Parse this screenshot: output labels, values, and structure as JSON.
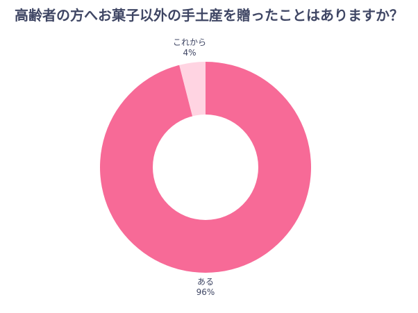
{
  "title": "高齢者の方へお菓子以外の手土産を贈ったことはありますか？",
  "colors": {
    "primary": "#f76a97",
    "secondary": "#ffd4e2",
    "text": "#3f4664"
  },
  "labels": [
    {
      "name": "ある",
      "pct": "96%"
    },
    {
      "name": "これから",
      "pct": "4%"
    }
  ],
  "chart_data": {
    "type": "pie",
    "variant": "donut",
    "title": "高齢者の方へお菓子以外の手土産を贈ったことはありますか？",
    "categories": [
      "ある",
      "これから"
    ],
    "values": [
      96,
      4
    ],
    "unit": "%",
    "colors": [
      "#f76a97",
      "#ffd4e2"
    ],
    "start_angle": "12 o'clock, clockwise",
    "legend": "none (data labels outside)"
  }
}
